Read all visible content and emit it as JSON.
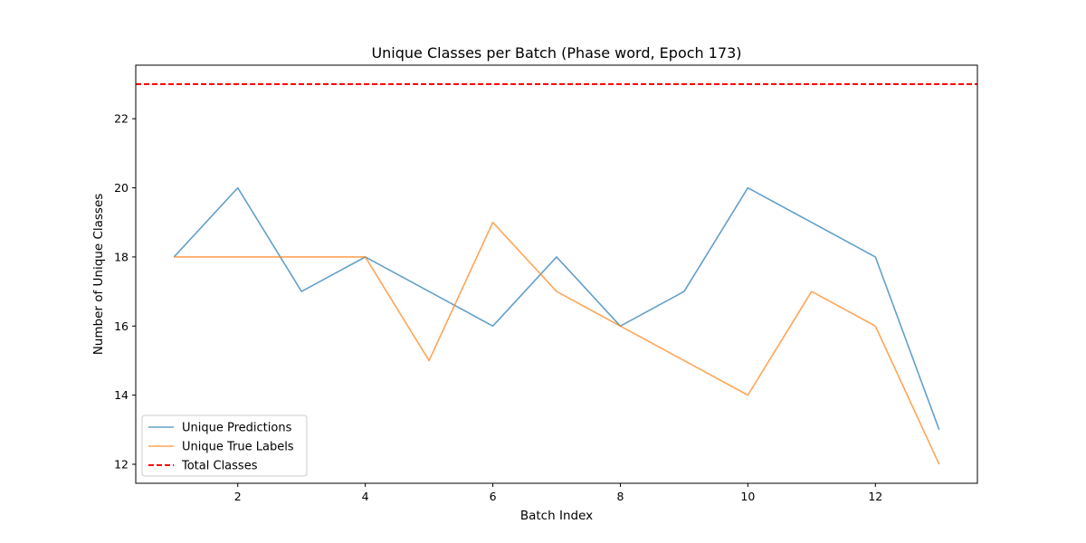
{
  "chart_data": {
    "type": "line",
    "title": "Unique Classes per Batch (Phase word, Epoch 173)",
    "xlabel": "Batch Index",
    "ylabel": "Number of Unique Classes",
    "x": [
      1,
      2,
      3,
      4,
      5,
      6,
      7,
      8,
      9,
      10,
      11,
      12,
      13
    ],
    "xlim": [
      0.4,
      13.6
    ],
    "ylim": [
      11.45,
      23.55
    ],
    "xticks": [
      2,
      4,
      6,
      8,
      10,
      12
    ],
    "yticks": [
      12,
      14,
      16,
      18,
      20,
      22
    ],
    "grid": false,
    "legend_position": "lower-left",
    "series": [
      {
        "name": "Unique Predictions",
        "color": "#1f77b4",
        "values": [
          18,
          20,
          17,
          18,
          17,
          16,
          18,
          16,
          17,
          20,
          19,
          18,
          13
        ]
      },
      {
        "name": "Unique True Labels",
        "color": "#ff7f0e",
        "values": [
          18,
          18,
          18,
          18,
          15,
          19,
          17,
          16,
          15,
          14,
          17,
          16,
          12
        ]
      }
    ],
    "reference_lines": [
      {
        "name": "Total Classes",
        "y": 23,
        "color": "#ff0000",
        "style": "dashed"
      }
    ]
  }
}
